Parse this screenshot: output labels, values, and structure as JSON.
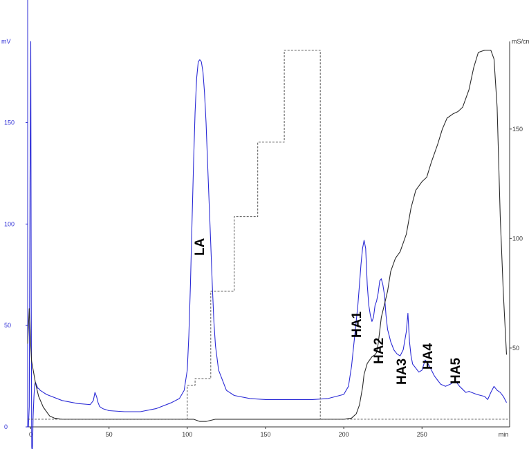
{
  "chart_data": {
    "type": "line",
    "x_unit": "min",
    "y_left_unit": "mV",
    "y_right_unit": "mS/cm",
    "x_ticks": [
      "0",
      "50",
      "100",
      "150",
      "200",
      "250",
      "min"
    ],
    "y_left_ticks": [
      "0",
      "50",
      "100",
      "150"
    ],
    "y_right_ticks": [
      "50",
      "100",
      "150"
    ],
    "xlim": [
      -2,
      306
    ],
    "ylim_left": [
      0,
      190
    ],
    "ylim_right": [
      14,
      190
    ],
    "colors": {
      "uv": "#2b2bd6",
      "conductivity": "#2a2a2a",
      "gradient": "#555555",
      "axis_left": "#2b2bd6"
    },
    "series": [
      {
        "axis": "left",
        "x": [
          -2,
          -1.5,
          -1,
          -0.5,
          0,
          0.3,
          0.6,
          0.9,
          1.2,
          1.5,
          2,
          2.5,
          3,
          3.5,
          4,
          4.5,
          5,
          5.5,
          6,
          10,
          20,
          30,
          38,
          40,
          41,
          42,
          43,
          44,
          45,
          46,
          48,
          50,
          60,
          70,
          80,
          90,
          95,
          98,
          100,
          101,
          102,
          103,
          104,
          105,
          106,
          107,
          108,
          109,
          110,
          111,
          112,
          113,
          114,
          115,
          116,
          117,
          118,
          120,
          125,
          130,
          140,
          150,
          160,
          170,
          180,
          190,
          200,
          203,
          205,
          207,
          209,
          210,
          211,
          212,
          213,
          214,
          215,
          216,
          217,
          218,
          219,
          220,
          221,
          222,
          223,
          224,
          225,
          226,
          227,
          228,
          229,
          230,
          231,
          232,
          234,
          236,
          238,
          240,
          241,
          242,
          243,
          244,
          246,
          248,
          250,
          252,
          254,
          256,
          258,
          260,
          262,
          265,
          268,
          270,
          272,
          274,
          276,
          278,
          280,
          285,
          290,
          292,
          294,
          296,
          298,
          300,
          302,
          304
        ],
        "values": [
          0,
          0,
          10,
          120,
          190,
          60,
          -10,
          -12,
          -8,
          5,
          15,
          21,
          22,
          21,
          20,
          19,
          19,
          18.5,
          18,
          16,
          13,
          11.5,
          11,
          13,
          17,
          15,
          12,
          10,
          9.5,
          9,
          8.5,
          8,
          7.5,
          7.5,
          9,
          12,
          14,
          18,
          28,
          45,
          70,
          100,
          130,
          155,
          172,
          180,
          181,
          180,
          175,
          165,
          150,
          130,
          110,
          90,
          70,
          52,
          40,
          28,
          18,
          15.5,
          14,
          13.5,
          13.5,
          13.5,
          13.5,
          14,
          16,
          20,
          30,
          45,
          60,
          70,
          80,
          88,
          92,
          88,
          70,
          60,
          55,
          52,
          54,
          60,
          62,
          66,
          72,
          73,
          70,
          65,
          55,
          48,
          45,
          42,
          40,
          38,
          36,
          35,
          38,
          47,
          56,
          42,
          35,
          31,
          29,
          27,
          28,
          33,
          31,
          28,
          25,
          23,
          21,
          20,
          21,
          22,
          22,
          20,
          18.5,
          17,
          17.5,
          16,
          15,
          13.5,
          17,
          20,
          18,
          17,
          15,
          12
        ]
      },
      {
        "axis": "right",
        "x": [
          -2,
          -1,
          0,
          0.5,
          1,
          2,
          3,
          5,
          8,
          12,
          15,
          20,
          30,
          50,
          80,
          100,
          104,
          108,
          112,
          118,
          150,
          200,
          205,
          208,
          210,
          212,
          213,
          215,
          217,
          218,
          219,
          220,
          221,
          222,
          223,
          224,
          226,
          228,
          230,
          233,
          236,
          240,
          243,
          246,
          250,
          253,
          256,
          260,
          263,
          266,
          270,
          273,
          276,
          280,
          283,
          286,
          290,
          292,
          294,
          296,
          298,
          300,
          302,
          304
        ],
        "values": [
          52,
          68,
          51,
          44,
          42,
          38,
          34,
          28,
          23,
          19,
          18,
          17.5,
          17.5,
          17.5,
          17.5,
          17.5,
          17.5,
          16.5,
          16.5,
          17.5,
          17.5,
          17.5,
          18,
          20,
          24,
          32,
          38,
          43,
          45,
          46,
          46.5,
          47,
          48,
          52,
          58,
          64,
          70,
          76,
          85,
          91,
          94,
          102,
          114,
          122,
          126,
          128,
          135,
          143,
          150,
          155,
          157,
          158,
          160,
          168,
          178,
          185,
          186,
          186,
          186,
          182,
          160,
          110,
          75,
          47
        ]
      },
      {
        "axis": "right",
        "style": "dashed",
        "x": [
          -2,
          100,
          100,
          105,
          105,
          115,
          115,
          130,
          130,
          145,
          145,
          162,
          162,
          185,
          185,
          306
        ],
        "values": [
          17.5,
          17.5,
          33,
          33,
          36,
          36,
          76,
          76,
          110,
          110,
          144,
          144,
          186,
          186,
          17.5,
          17.5
        ]
      }
    ],
    "annotations": [
      "LA",
      "HA1",
      "HA2",
      "HA3",
      "HA4",
      "HA5"
    ]
  }
}
